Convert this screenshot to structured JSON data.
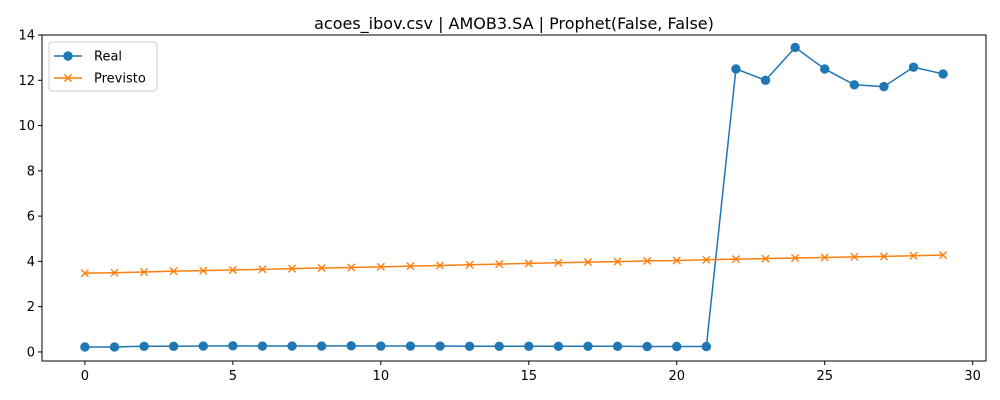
{
  "chart_data": {
    "type": "line",
    "title": "acoes_ibov.csv | AMOB3.SA | Prophet(False, False)",
    "xlabel": "",
    "ylabel": "",
    "xlim": [
      -1.45,
      30.45
    ],
    "ylim": [
      -0.4,
      14.0
    ],
    "xticks": [
      0,
      5,
      10,
      15,
      20,
      25,
      30
    ],
    "yticks": [
      0,
      2,
      4,
      6,
      8,
      10,
      12,
      14
    ],
    "grid": false,
    "legend_position": "top-left",
    "x": [
      0,
      1,
      2,
      3,
      4,
      5,
      6,
      7,
      8,
      9,
      10,
      11,
      12,
      13,
      14,
      15,
      16,
      17,
      18,
      19,
      20,
      21,
      22,
      23,
      24,
      25,
      26,
      27,
      28,
      29
    ],
    "series": [
      {
        "name": "Real",
        "color": "#1f77b4",
        "marker": "circle",
        "values": [
          0.22,
          0.22,
          0.25,
          0.25,
          0.26,
          0.27,
          0.26,
          0.26,
          0.26,
          0.27,
          0.26,
          0.26,
          0.26,
          0.25,
          0.25,
          0.25,
          0.25,
          0.25,
          0.25,
          0.24,
          0.24,
          0.24,
          12.5,
          12.0,
          13.45,
          12.5,
          11.8,
          11.72,
          12.58,
          12.28
        ]
      },
      {
        "name": "Previsto",
        "color": "#ff7f0e",
        "marker": "x",
        "values": [
          3.48,
          3.5,
          3.53,
          3.57,
          3.59,
          3.62,
          3.65,
          3.68,
          3.71,
          3.73,
          3.76,
          3.79,
          3.82,
          3.85,
          3.88,
          3.91,
          3.94,
          3.97,
          3.99,
          4.02,
          4.04,
          4.07,
          4.1,
          4.12,
          4.15,
          4.17,
          4.2,
          4.22,
          4.25,
          4.28
        ]
      }
    ]
  }
}
